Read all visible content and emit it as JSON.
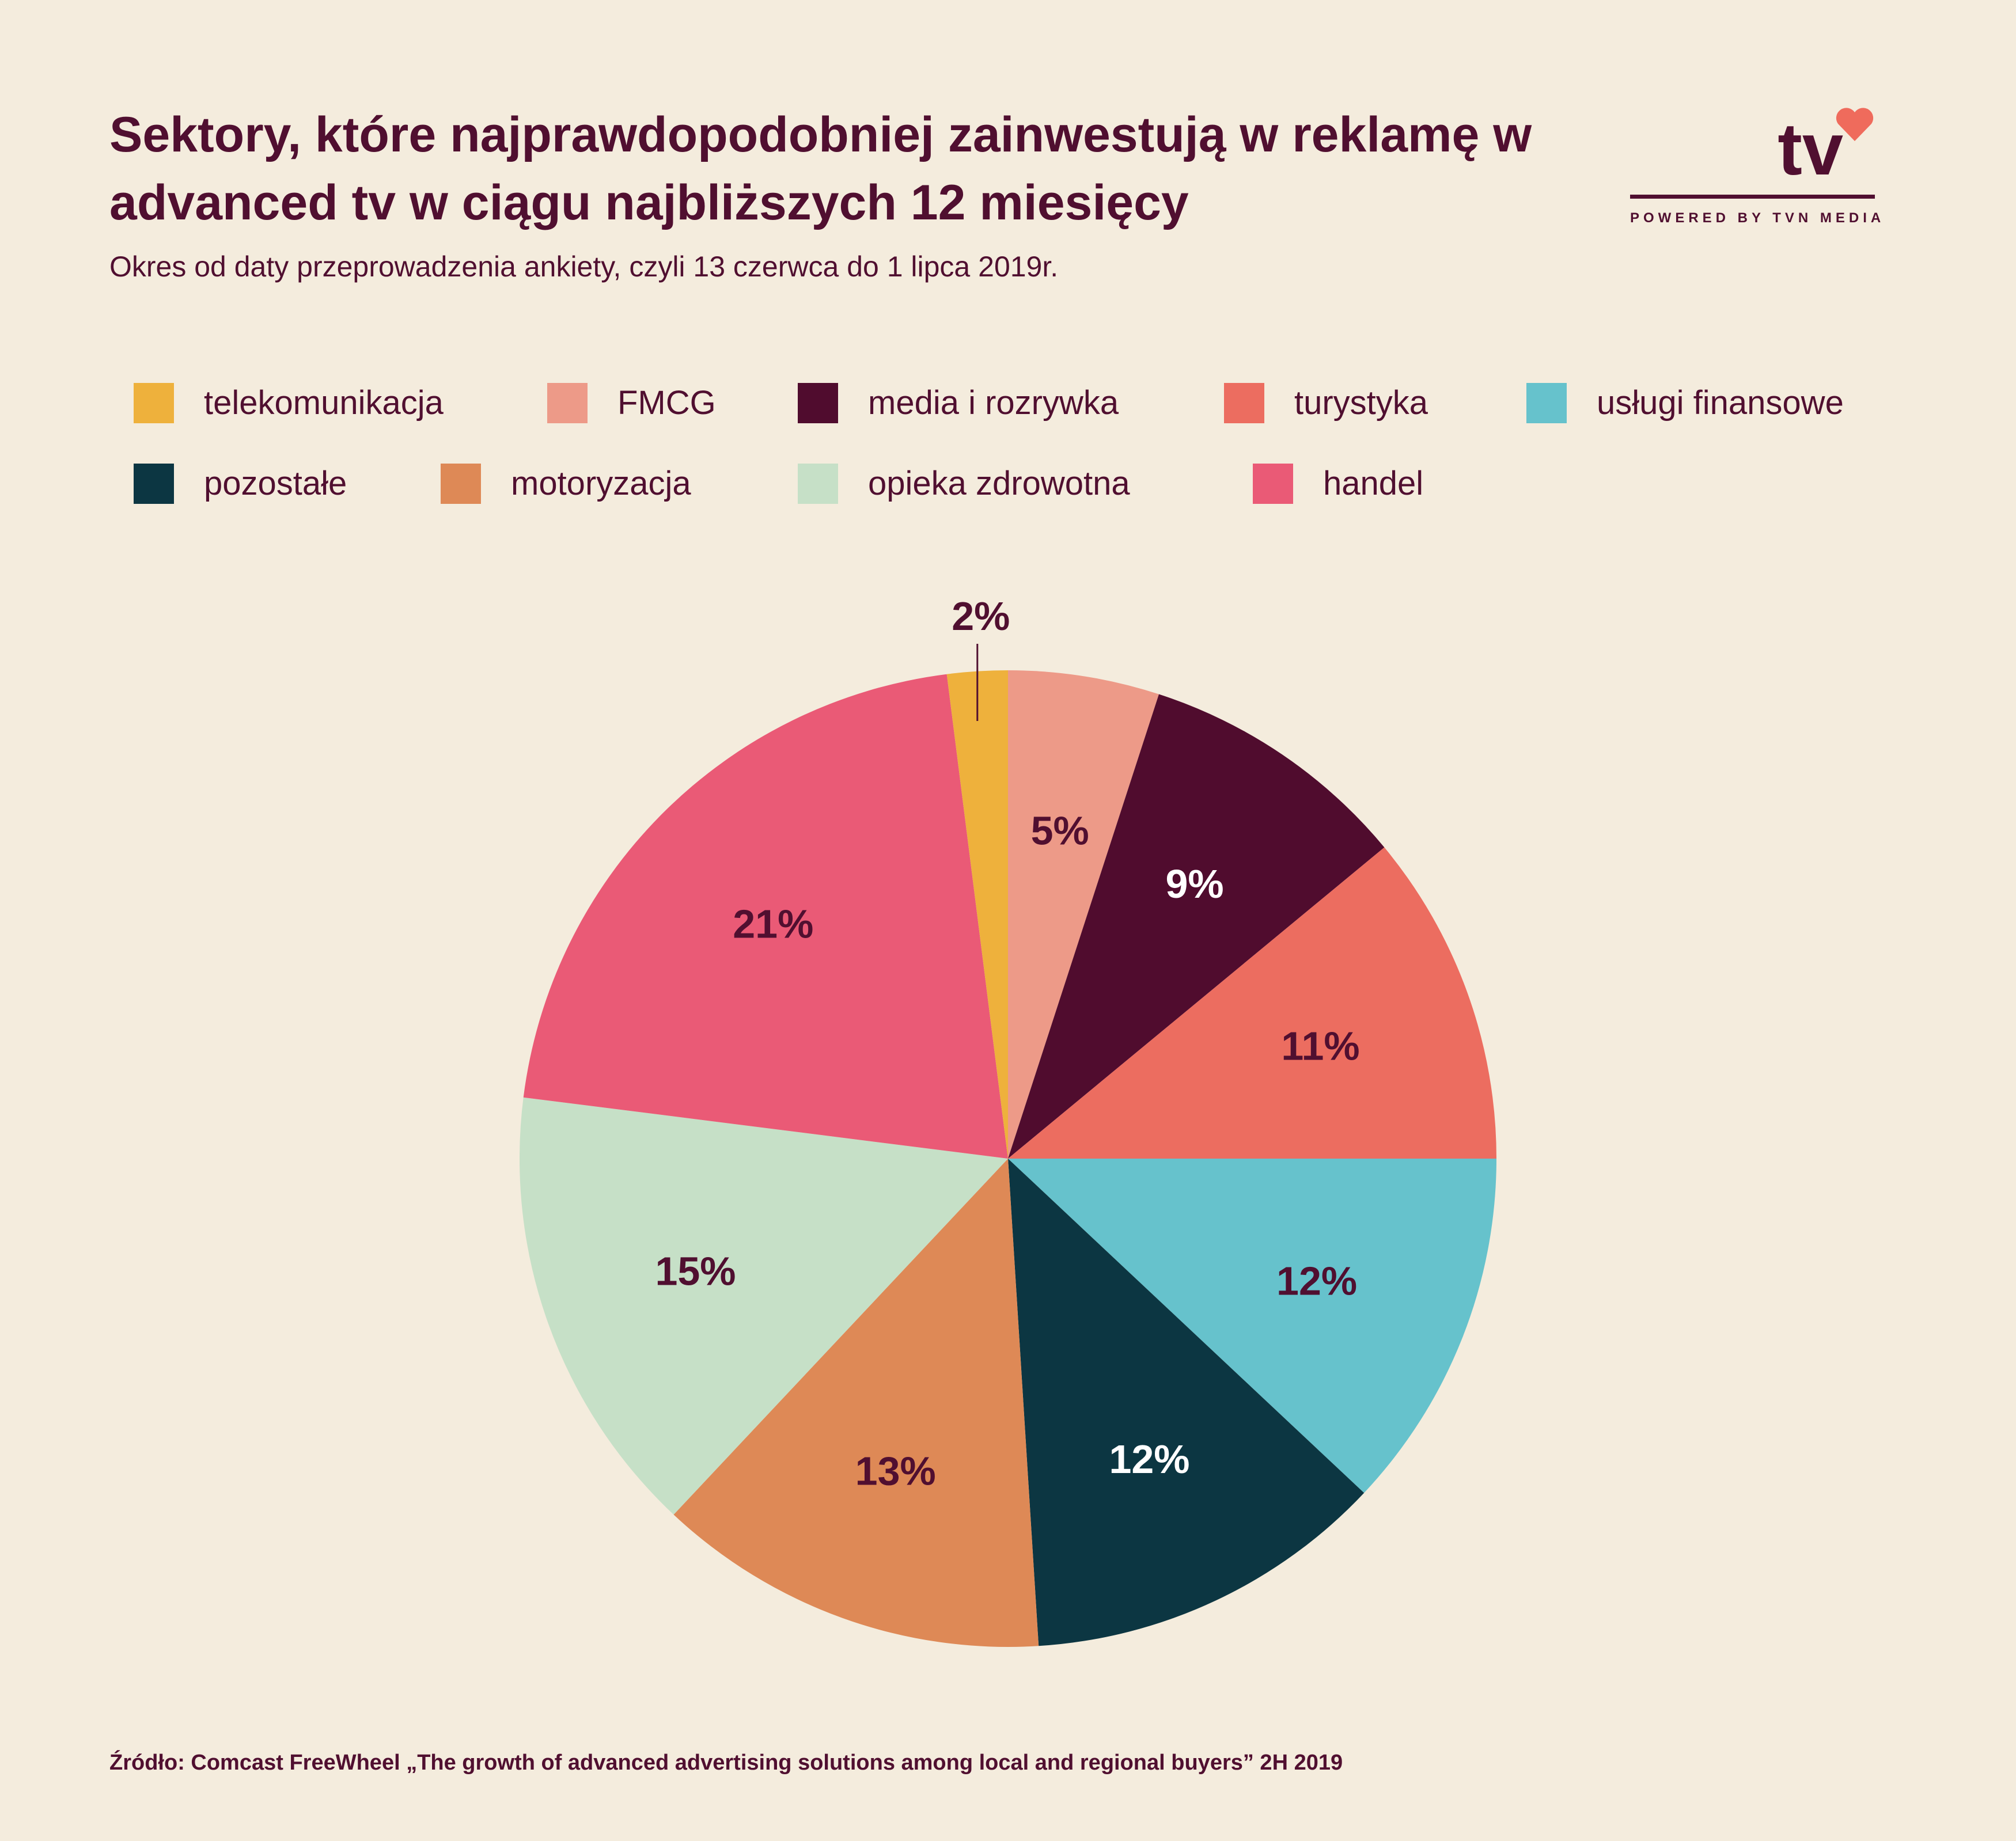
{
  "header": {
    "title": "Sektory, które najprawdopodobniej zainwestują w reklamę w advanced tv w ciągu najbliższych 12 miesięcy",
    "subtitle": "Okres od daty przeprowadzenia ankiety, czyli 13 czerwca do 1 lipca 2019r."
  },
  "logo": {
    "text": "tv",
    "tagline": "POWERED BY TVN MEDIA",
    "icon": "heart-icon",
    "heart_color": "#ef6b5c"
  },
  "legend": {
    "placement": "top",
    "items": [
      {
        "label": "telekomunikacja",
        "color": "#eeb13c"
      },
      {
        "label": "FMCG",
        "color": "#ed9a88"
      },
      {
        "label": "media i rozrywka",
        "color": "#500c2e"
      },
      {
        "label": "turystyka",
        "color": "#ec6d60"
      },
      {
        "label": "usługi finansowe",
        "color": "#66c2cc"
      },
      {
        "label": "pozostałe",
        "color": "#0c3642"
      },
      {
        "label": "motoryzacja",
        "color": "#de8956"
      },
      {
        "label": "opieka zdrowotna",
        "color": "#c6e0c7"
      },
      {
        "label": "handel",
        "color": "#ea5a76"
      }
    ]
  },
  "chart_data": {
    "type": "pie",
    "start": "12 o'clock",
    "direction": "clockwise",
    "slices": [
      {
        "label": "FMCG",
        "value": 5,
        "text": "5%",
        "color": "#ed9a88",
        "text_color": "#500f30"
      },
      {
        "label": "media i rozrywka",
        "value": 9,
        "text": "9%",
        "color": "#500c2e",
        "text_color": "#ffffff"
      },
      {
        "label": "turystyka",
        "value": 11,
        "text": "11%",
        "color": "#ec6d60",
        "text_color": "#500f30"
      },
      {
        "label": "usługi finansowe",
        "value": 12,
        "text": "12%",
        "color": "#66c2cc",
        "text_color": "#500f30"
      },
      {
        "label": "pozostałe",
        "value": 12,
        "text": "12%",
        "color": "#0c3642",
        "text_color": "#ffffff"
      },
      {
        "label": "motoryzacja",
        "value": 13,
        "text": "13%",
        "color": "#de8956",
        "text_color": "#500f30"
      },
      {
        "label": "opieka zdrowotna",
        "value": 15,
        "text": "15%",
        "color": "#c6e0c7",
        "text_color": "#500f30"
      },
      {
        "label": "handel",
        "value": 21,
        "text": "21%",
        "color": "#ea5a76",
        "text_color": "#500f30"
      },
      {
        "label": "telekomunikacja",
        "value": 2,
        "text": "2%",
        "color": "#eeb13c",
        "text_color": "#500f30",
        "label_outside": true
      }
    ]
  },
  "footer": {
    "source": "Źródło: Comcast FreeWheel „The growth of advanced advertising solutions among local and regional buyers” 2H 2019"
  }
}
